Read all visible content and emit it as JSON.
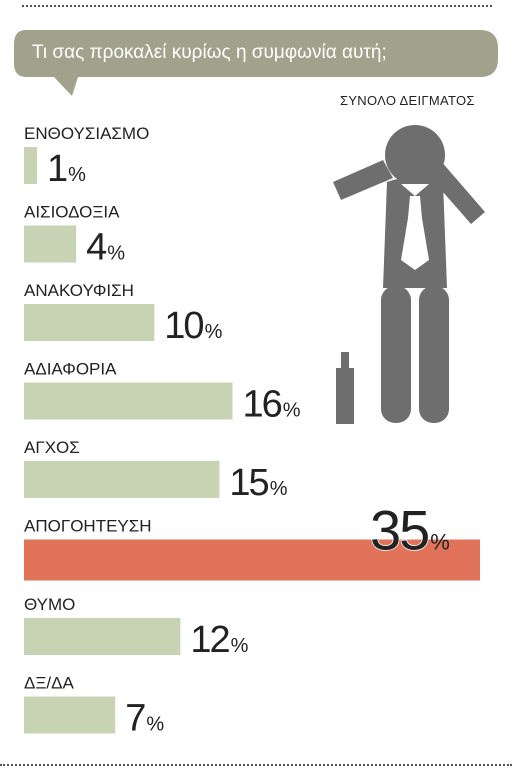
{
  "question": "Τι σας προκαλεί κυρίως η συμφωνία αυτή;",
  "sample_label": "ΣΥΝΟΛΟ ΔΕΙΓΜΑΤΟΣ",
  "percent_sign": "%",
  "colors": {
    "bar": "#c8d3b3",
    "highlight": "#e0735a",
    "bubble": "#a2a28c",
    "figure": "#6e6e6e",
    "text": "#222222"
  },
  "icons": {
    "figure": "stressed-businessman-icon",
    "bottle": "bottle-icon"
  },
  "chart_data": {
    "type": "bar",
    "orientation": "horizontal",
    "title": "",
    "xlabel": "",
    "ylabel": "",
    "xlim": [
      0,
      35
    ],
    "grid": false,
    "categories": [
      "ΕΝΘΟΥΣΙΑΣΜΟ",
      "ΑΙΣΙΟΔΟΞΙΑ",
      "ΑΝΑΚΟΥΦΙΣΗ",
      "ΑΔΙΑΦΟΡΙΑ",
      "ΑΓΧΟΣ",
      "ΑΠΟΓΟΗΤΕΥΣΗ",
      "ΘΥΜΟ",
      "ΔΞ/ΔΑ"
    ],
    "values": [
      1,
      4,
      10,
      16,
      15,
      35,
      12,
      7
    ],
    "value_labels": [
      "1",
      "4",
      "10",
      "16",
      "15",
      "35",
      "12",
      "7"
    ],
    "highlight_category": "ΑΠΟΓΟΗΤΕΥΣΗ"
  }
}
